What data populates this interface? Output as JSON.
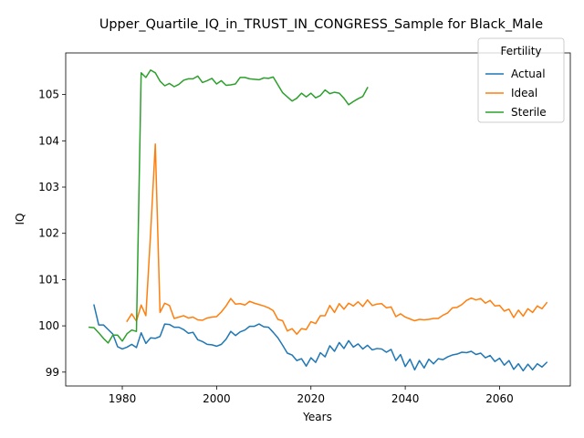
{
  "chart_data": {
    "type": "line",
    "title": "Upper_Quartile_IQ_in_TRUST_IN_CONGRESS_Sample for Black_Male",
    "xlabel": "Years",
    "ylabel": "IQ",
    "xlim": [
      1968,
      2075
    ],
    "ylim": [
      98.7,
      105.9
    ],
    "xticks": [
      1980,
      2000,
      2020,
      2040,
      2060
    ],
    "yticks": [
      99,
      100,
      101,
      102,
      103,
      104,
      105
    ],
    "grid": false,
    "legend": {
      "title": "Fertility",
      "placement": "top-right"
    },
    "series": [
      {
        "name": "Actual",
        "color": "#1f77b4",
        "x": [
          1974,
          1975,
          1976,
          1977,
          1978,
          1979,
          1980,
          1981,
          1982,
          1983,
          1984,
          1985,
          1986,
          1987,
          1988,
          1989,
          1990,
          1991,
          1992,
          1993,
          1994,
          1995,
          1996,
          1997,
          1998,
          1999,
          2000,
          2001,
          2002,
          2003,
          2004,
          2005,
          2006,
          2007,
          2008,
          2009,
          2010,
          2011,
          2012,
          2013,
          2014,
          2015,
          2016,
          2017,
          2018,
          2019,
          2020,
          2021,
          2022,
          2023,
          2024,
          2025,
          2026,
          2027,
          2028,
          2029,
          2030,
          2031,
          2032,
          2033,
          2034,
          2035,
          2036,
          2037,
          2038,
          2039,
          2040,
          2041,
          2042,
          2043,
          2044,
          2045,
          2046,
          2047,
          2048,
          2049,
          2050,
          2051,
          2052,
          2053,
          2054,
          2055,
          2056,
          2057,
          2058,
          2059,
          2060,
          2061,
          2062,
          2063,
          2064,
          2065,
          2066,
          2067,
          2068,
          2069,
          2070
        ],
        "values": [
          100.45,
          100.02,
          100.02,
          99.92,
          99.82,
          99.55,
          99.5,
          99.54,
          99.6,
          99.53,
          99.85,
          99.62,
          99.74,
          99.73,
          99.77,
          100.04,
          100.03,
          99.97,
          99.97,
          99.92,
          99.84,
          99.86,
          99.7,
          99.66,
          99.6,
          99.59,
          99.56,
          99.6,
          99.71,
          99.88,
          99.79,
          99.87,
          99.91,
          99.99,
          99.99,
          100.04,
          99.98,
          99.97,
          99.86,
          99.74,
          99.58,
          99.41,
          99.37,
          99.25,
          99.29,
          99.13,
          99.31,
          99.21,
          99.42,
          99.33,
          99.57,
          99.45,
          99.64,
          99.51,
          99.68,
          99.54,
          99.61,
          99.5,
          99.58,
          99.48,
          99.51,
          99.5,
          99.43,
          99.49,
          99.25,
          99.38,
          99.12,
          99.28,
          99.05,
          99.25,
          99.09,
          99.28,
          99.18,
          99.29,
          99.27,
          99.33,
          99.37,
          99.39,
          99.43,
          99.42,
          99.45,
          99.38,
          99.41,
          99.31,
          99.36,
          99.23,
          99.3,
          99.15,
          99.25,
          99.06,
          99.18,
          99.03,
          99.17,
          99.05,
          99.18,
          99.11,
          99.21
        ]
      },
      {
        "name": "Ideal",
        "color": "#ff7f0e",
        "x": [
          1981,
          1982,
          1983,
          1984,
          1985,
          1986,
          1987,
          1988,
          1989,
          1990,
          1991,
          1992,
          1993,
          1994,
          1995,
          1996,
          1997,
          1998,
          1999,
          2000,
          2001,
          2002,
          2003,
          2004,
          2005,
          2006,
          2007,
          2008,
          2009,
          2010,
          2011,
          2012,
          2013,
          2014,
          2015,
          2016,
          2017,
          2018,
          2019,
          2020,
          2021,
          2022,
          2023,
          2024,
          2025,
          2026,
          2027,
          2028,
          2029,
          2030,
          2031,
          2032,
          2033,
          2034,
          2035,
          2036,
          2037,
          2038,
          2039,
          2040,
          2041,
          2042,
          2043,
          2044,
          2045,
          2046,
          2047,
          2048,
          2049,
          2050,
          2051,
          2052,
          2053,
          2054,
          2055,
          2056,
          2057,
          2058,
          2059,
          2060,
          2061,
          2062,
          2063,
          2064,
          2065,
          2066,
          2067,
          2068,
          2069,
          2070
        ],
        "values": [
          100.1,
          100.26,
          100.1,
          100.45,
          100.22,
          102.0,
          103.93,
          100.29,
          100.49,
          100.44,
          100.16,
          100.19,
          100.22,
          100.17,
          100.19,
          100.13,
          100.12,
          100.17,
          100.19,
          100.2,
          100.3,
          100.43,
          100.59,
          100.47,
          100.48,
          100.45,
          100.53,
          100.49,
          100.46,
          100.43,
          100.39,
          100.33,
          100.14,
          100.11,
          99.89,
          99.94,
          99.82,
          99.94,
          99.92,
          100.09,
          100.05,
          100.22,
          100.22,
          100.44,
          100.29,
          100.48,
          100.36,
          100.49,
          100.43,
          100.52,
          100.42,
          100.56,
          100.44,
          100.47,
          100.48,
          100.39,
          100.41,
          100.2,
          100.26,
          100.19,
          100.15,
          100.11,
          100.14,
          100.13,
          100.14,
          100.16,
          100.16,
          100.23,
          100.28,
          100.39,
          100.4,
          100.46,
          100.55,
          100.6,
          100.56,
          100.59,
          100.49,
          100.55,
          100.43,
          100.44,
          100.32,
          100.36,
          100.18,
          100.34,
          100.21,
          100.37,
          100.29,
          100.43,
          100.37,
          100.5
        ]
      },
      {
        "name": "Sterile",
        "color": "#2ca02c",
        "x": [
          1973,
          1974,
          1975,
          1976,
          1977,
          1978,
          1979,
          1980,
          1981,
          1982,
          1983,
          1984,
          1985,
          1986,
          1987,
          1988,
          1989,
          1990,
          1991,
          1992,
          1993,
          1994,
          1995,
          1996,
          1997,
          1998,
          1999,
          2000,
          2001,
          2002,
          2003,
          2004,
          2005,
          2006,
          2007,
          2008,
          2009,
          2010,
          2011,
          2012,
          2013,
          2014,
          2015,
          2016,
          2017,
          2018,
          2019,
          2020,
          2021,
          2022,
          2023,
          2024,
          2025,
          2026,
          2027,
          2028,
          2029,
          2030,
          2031,
          2032
        ],
        "values": [
          99.97,
          99.96,
          99.85,
          99.73,
          99.63,
          99.8,
          99.8,
          99.67,
          99.83,
          99.91,
          99.88,
          105.47,
          105.37,
          105.53,
          105.47,
          105.29,
          105.19,
          105.24,
          105.17,
          105.22,
          105.31,
          105.34,
          105.34,
          105.4,
          105.26,
          105.3,
          105.35,
          105.23,
          105.3,
          105.2,
          105.21,
          105.23,
          105.37,
          105.37,
          105.34,
          105.33,
          105.32,
          105.36,
          105.35,
          105.38,
          105.21,
          105.04,
          104.95,
          104.86,
          104.92,
          105.03,
          104.95,
          105.03,
          104.93,
          104.98,
          105.1,
          105.02,
          105.05,
          105.03,
          104.92,
          104.78,
          104.85,
          104.91,
          104.96,
          105.15
        ]
      }
    ]
  }
}
